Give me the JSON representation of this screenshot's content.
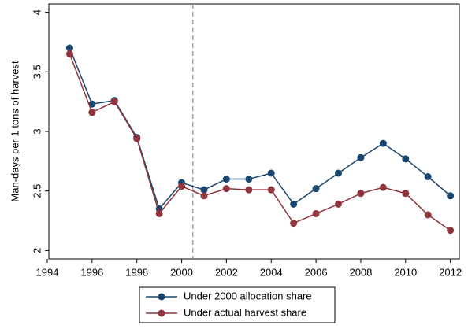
{
  "chart_data": {
    "type": "line",
    "y_label": "Man-days per 1 tons of harvest",
    "x": [
      1995,
      1996,
      1997,
      1998,
      1999,
      2000,
      2001,
      2002,
      2003,
      2004,
      2005,
      2006,
      2007,
      2008,
      2009,
      2010,
      2011,
      2012
    ],
    "series": [
      {
        "name": "Under 2000 allocation share",
        "color": "#1a476f",
        "values": [
          3.7,
          3.23,
          3.26,
          2.95,
          2.35,
          2.57,
          2.51,
          2.6,
          2.6,
          2.65,
          2.39,
          2.52,
          2.65,
          2.78,
          2.9,
          2.77,
          2.62,
          2.46
        ]
      },
      {
        "name": "Under actual harvest share",
        "color": "#90353b",
        "values": [
          3.65,
          3.16,
          3.25,
          2.94,
          2.31,
          2.54,
          2.46,
          2.52,
          2.51,
          2.51,
          2.23,
          2.31,
          2.39,
          2.48,
          2.53,
          2.48,
          2.3,
          2.17
        ]
      }
    ],
    "xlim": [
      1994,
      2012.4
    ],
    "xticks": [
      1994,
      1996,
      1998,
      2000,
      2002,
      2004,
      2006,
      2008,
      2010,
      2012
    ],
    "ylim": [
      1.93,
      4.07
    ],
    "yticks": [
      2,
      2.5,
      3,
      3.5,
      4
    ],
    "reference_line": {
      "x": 2000.5,
      "color": "#999999",
      "style": "dashed"
    },
    "legend": "bottom",
    "grid": false
  }
}
